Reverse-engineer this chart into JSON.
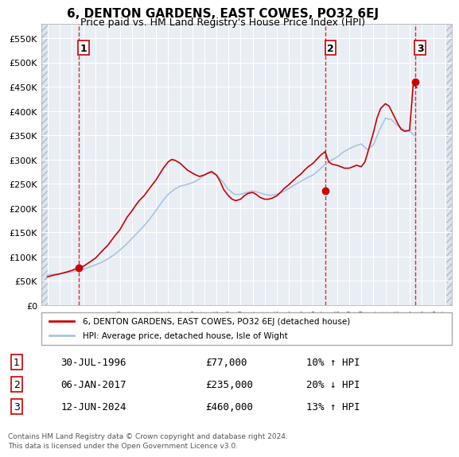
{
  "title": "6, DENTON GARDENS, EAST COWES, PO32 6EJ",
  "subtitle": "Price paid vs. HM Land Registry's House Price Index (HPI)",
  "legend_line1": "6, DENTON GARDENS, EAST COWES, PO32 6EJ (detached house)",
  "legend_line2": "HPI: Average price, detached house, Isle of Wight",
  "footnote1": "Contains HM Land Registry data © Crown copyright and database right 2024.",
  "footnote2": "This data is licensed under the Open Government Licence v3.0.",
  "transactions": [
    {
      "num": 1,
      "date": "30-JUL-1996",
      "price": 77000,
      "pct": "10%",
      "dir": "↑",
      "year": 1996.57
    },
    {
      "num": 2,
      "date": "06-JAN-2017",
      "price": 235000,
      "pct": "20%",
      "dir": "↓",
      "year": 2017.02
    },
    {
      "num": 3,
      "date": "12-JUN-2024",
      "price": 460000,
      "pct": "13%",
      "dir": "↑",
      "year": 2024.44
    }
  ],
  "xlim": [
    1993.5,
    2027.5
  ],
  "ylim": [
    0,
    580000
  ],
  "yticks": [
    0,
    50000,
    100000,
    150000,
    200000,
    250000,
    300000,
    350000,
    400000,
    450000,
    500000,
    550000
  ],
  "ytick_labels": [
    "£0",
    "£50K",
    "£100K",
    "£150K",
    "£200K",
    "£250K",
    "£300K",
    "£350K",
    "£400K",
    "£450K",
    "£500K",
    "£550K"
  ],
  "xticks": [
    1994,
    1995,
    1996,
    1997,
    1998,
    1999,
    2000,
    2001,
    2002,
    2003,
    2004,
    2005,
    2006,
    2007,
    2008,
    2009,
    2010,
    2011,
    2012,
    2013,
    2014,
    2015,
    2016,
    2017,
    2018,
    2019,
    2020,
    2021,
    2022,
    2023,
    2024,
    2025,
    2026,
    2027
  ],
  "hpi_color": "#aac4e0",
  "price_color": "#cc0000",
  "dashed_color": "#cc0000",
  "marker_color": "#cc0000",
  "bg_plot": "#e8eef4",
  "bg_hatch": "#dde4ec",
  "grid_color": "#ffffff",
  "hpi_data_x": [
    1994,
    1994.5,
    1995,
    1995.5,
    1996,
    1996.5,
    1997,
    1997.5,
    1998,
    1998.5,
    1999,
    1999.5,
    2000,
    2000.5,
    2001,
    2001.5,
    2002,
    2002.5,
    2003,
    2003.5,
    2004,
    2004.5,
    2005,
    2005.5,
    2006,
    2006.5,
    2007,
    2007.5,
    2008,
    2008.5,
    2009,
    2009.5,
    2010,
    2010.5,
    2011,
    2011.5,
    2012,
    2012.5,
    2013,
    2013.5,
    2014,
    2014.5,
    2015,
    2015.5,
    2016,
    2016.5,
    2017,
    2017.5,
    2018,
    2018.5,
    2019,
    2019.5,
    2020,
    2020.5,
    2021,
    2021.5,
    2022,
    2022.5,
    2023,
    2023.5,
    2024,
    2024.5
  ],
  "hpi_data_y": [
    62000,
    63000,
    64000,
    66000,
    68000,
    71000,
    74000,
    78000,
    83000,
    88000,
    95000,
    103000,
    113000,
    124000,
    137000,
    150000,
    163000,
    178000,
    195000,
    213000,
    228000,
    238000,
    245000,
    248000,
    252000,
    258000,
    268000,
    272000,
    268000,
    255000,
    238000,
    228000,
    228000,
    232000,
    235000,
    232000,
    228000,
    226000,
    228000,
    233000,
    240000,
    248000,
    255000,
    262000,
    268000,
    278000,
    290000,
    298000,
    305000,
    315000,
    322000,
    328000,
    332000,
    320000,
    330000,
    360000,
    385000,
    382000,
    370000,
    362000,
    358000,
    348000
  ],
  "price_data_x": [
    1994.0,
    1994.3,
    1994.6,
    1995.0,
    1995.3,
    1995.6,
    1996.0,
    1996.3,
    1996.6,
    1997.0,
    1997.3,
    1997.6,
    1998.0,
    1998.3,
    1998.6,
    1999.0,
    1999.3,
    1999.6,
    2000.0,
    2000.3,
    2000.6,
    2001.0,
    2001.3,
    2001.6,
    2002.0,
    2002.3,
    2002.6,
    2003.0,
    2003.3,
    2003.6,
    2004.0,
    2004.3,
    2004.6,
    2005.0,
    2005.3,
    2005.6,
    2006.0,
    2006.3,
    2006.6,
    2007.0,
    2007.3,
    2007.6,
    2008.0,
    2008.3,
    2008.6,
    2009.0,
    2009.3,
    2009.6,
    2010.0,
    2010.3,
    2010.6,
    2011.0,
    2011.3,
    2011.6,
    2012.0,
    2012.3,
    2012.6,
    2013.0,
    2013.3,
    2013.6,
    2014.0,
    2014.3,
    2014.6,
    2015.0,
    2015.3,
    2015.6,
    2016.0,
    2016.3,
    2016.6,
    2017.0,
    2017.3,
    2017.6,
    2018.0,
    2018.3,
    2018.6,
    2019.0,
    2019.3,
    2019.6,
    2020.0,
    2020.3,
    2020.6,
    2021.0,
    2021.3,
    2021.6,
    2022.0,
    2022.3,
    2022.6,
    2023.0,
    2023.3,
    2023.6,
    2024.0,
    2024.3,
    2024.6
  ],
  "price_data_y": [
    58000,
    60000,
    62000,
    64000,
    66000,
    68000,
    71000,
    74000,
    77000,
    80000,
    85000,
    90000,
    97000,
    105000,
    113000,
    123000,
    133000,
    143000,
    155000,
    168000,
    181000,
    194000,
    205000,
    215000,
    225000,
    235000,
    245000,
    258000,
    270000,
    282000,
    295000,
    300000,
    298000,
    292000,
    285000,
    278000,
    272000,
    268000,
    265000,
    268000,
    272000,
    275000,
    268000,
    255000,
    238000,
    225000,
    218000,
    215000,
    218000,
    225000,
    230000,
    232000,
    228000,
    222000,
    218000,
    218000,
    220000,
    225000,
    232000,
    240000,
    248000,
    255000,
    262000,
    270000,
    278000,
    285000,
    292000,
    300000,
    308000,
    316000,
    295000,
    290000,
    288000,
    285000,
    282000,
    282000,
    285000,
    288000,
    285000,
    295000,
    320000,
    355000,
    385000,
    405000,
    415000,
    410000,
    395000,
    375000,
    362000,
    358000,
    360000,
    455000,
    448000
  ]
}
